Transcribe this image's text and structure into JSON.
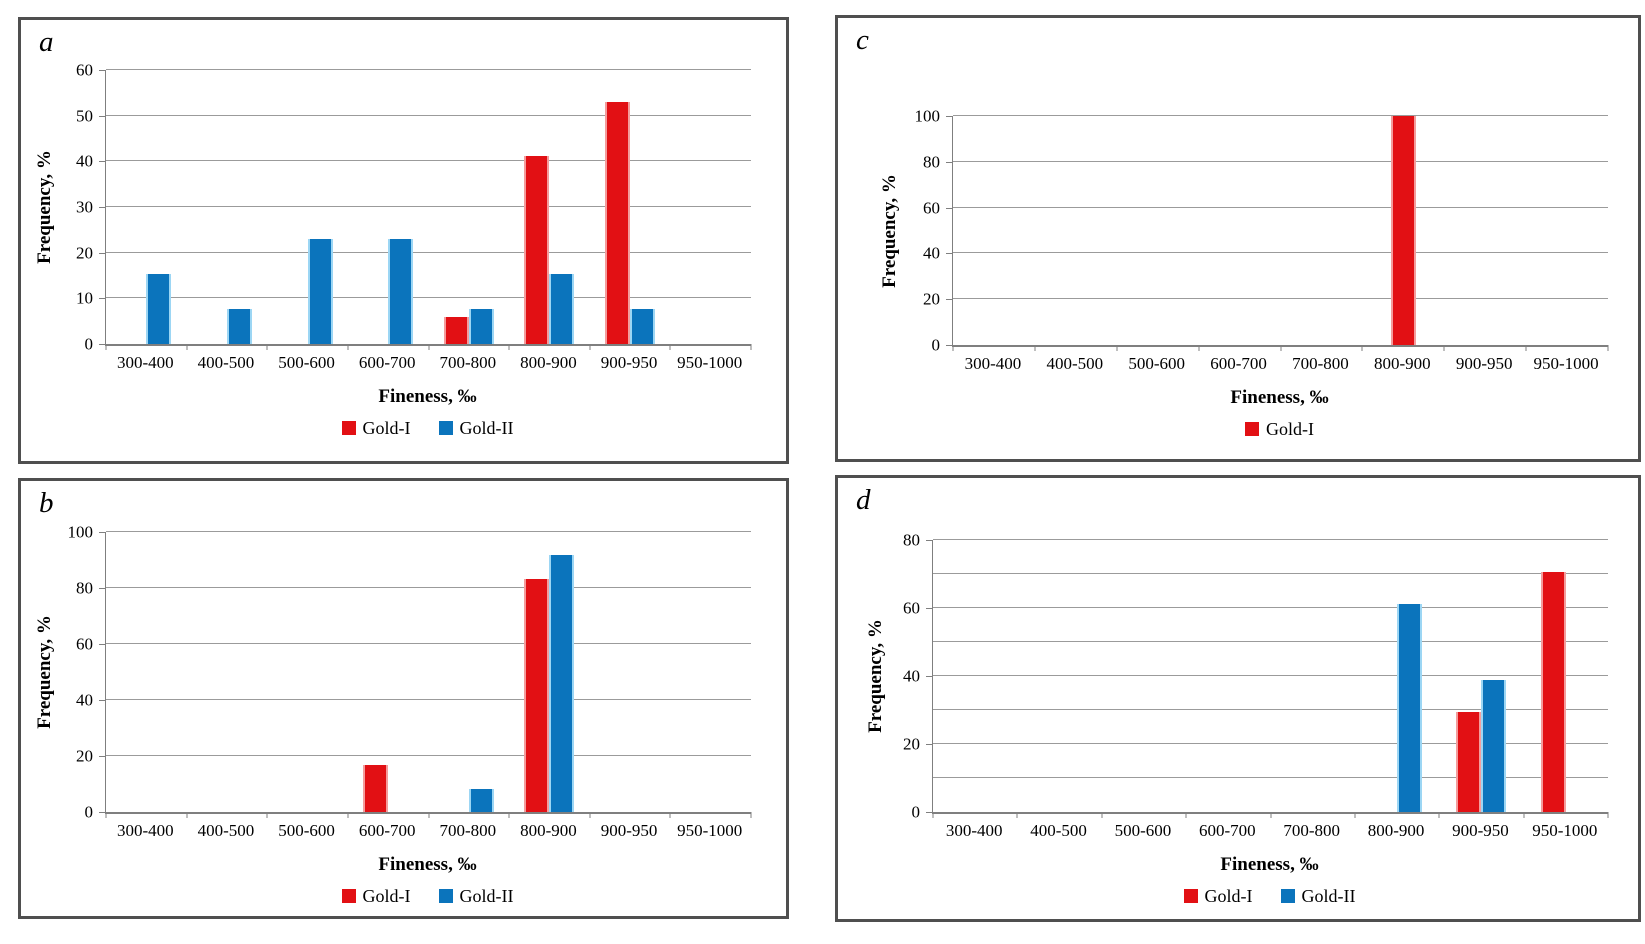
{
  "colors": {
    "gold_i": "#e21014",
    "gold_ii": "#0b74bc",
    "gridline": "#9b9b9b",
    "axis": "#7f7f7f",
    "panel_border": "#4f4f4f"
  },
  "chart_data": [
    {
      "panel_label": "a",
      "type": "bar",
      "xlabel": "Fineness, ‰",
      "ylabel": "Frequency, %",
      "ylim": [
        0,
        60
      ],
      "grid_step": 10,
      "yticks": [
        0,
        10,
        20,
        30,
        40,
        50,
        60
      ],
      "grid": true,
      "legend_position": "bottom",
      "categories": [
        "300-400",
        "400-500",
        "500-600",
        "600-700",
        "700-800",
        "800-900",
        "900-950",
        "950-1000"
      ],
      "series": [
        {
          "name": "Gold-I",
          "color_key": "gold_i",
          "values": [
            0,
            0,
            0,
            0,
            5.9,
            41.2,
            52.9,
            0
          ]
        },
        {
          "name": "Gold-II",
          "color_key": "gold_ii",
          "values": [
            15.4,
            7.7,
            23.1,
            23.1,
            7.7,
            15.4,
            7.7,
            0
          ]
        }
      ]
    },
    {
      "panel_label": "c",
      "type": "bar",
      "xlabel": "Fineness, ‰",
      "ylabel": "Frequency, %",
      "ylim": [
        0,
        100
      ],
      "grid_step": 20,
      "yticks": [
        0,
        20,
        40,
        60,
        80,
        100
      ],
      "grid": true,
      "legend_position": "bottom",
      "categories": [
        "300-400",
        "400-500",
        "500-600",
        "600-700",
        "700-800",
        "800-900",
        "900-950",
        "950-1000"
      ],
      "series": [
        {
          "name": "Gold-I",
          "color_key": "gold_i",
          "values": [
            0,
            0,
            0,
            0,
            0,
            100,
            0,
            0
          ]
        }
      ]
    },
    {
      "panel_label": "b",
      "type": "bar",
      "xlabel": "Fineness, ‰",
      "ylabel": "Frequency, %",
      "ylim": [
        0,
        100
      ],
      "grid_step": 20,
      "yticks": [
        0,
        20,
        40,
        60,
        80,
        100
      ],
      "grid": true,
      "legend_position": "bottom",
      "categories": [
        "300-400",
        "400-500",
        "500-600",
        "600-700",
        "700-800",
        "800-900",
        "900-950",
        "950-1000"
      ],
      "series": [
        {
          "name": "Gold-I",
          "color_key": "gold_i",
          "values": [
            0,
            0,
            0,
            16.7,
            0,
            83.3,
            0,
            0
          ]
        },
        {
          "name": "Gold-II",
          "color_key": "gold_ii",
          "values": [
            0,
            0,
            0,
            0,
            8.3,
            91.7,
            0,
            0
          ]
        }
      ]
    },
    {
      "panel_label": "d",
      "type": "bar",
      "xlabel": "Fineness, ‰",
      "ylabel": "Frequency, %",
      "ylim": [
        0,
        80
      ],
      "grid_step": 10,
      "yticks": [
        0,
        20,
        40,
        60,
        80
      ],
      "grid": true,
      "legend_position": "bottom",
      "categories": [
        "300-400",
        "400-500",
        "500-600",
        "600-700",
        "700-800",
        "800-900",
        "900-950",
        "950-1000"
      ],
      "series": [
        {
          "name": "Gold-I",
          "color_key": "gold_i",
          "values": [
            0,
            0,
            0,
            0,
            0,
            0,
            29.4,
            70.6
          ]
        },
        {
          "name": "Gold-II",
          "color_key": "gold_ii",
          "values": [
            0,
            0,
            0,
            0,
            0,
            61.1,
            38.9,
            0
          ]
        }
      ]
    }
  ]
}
